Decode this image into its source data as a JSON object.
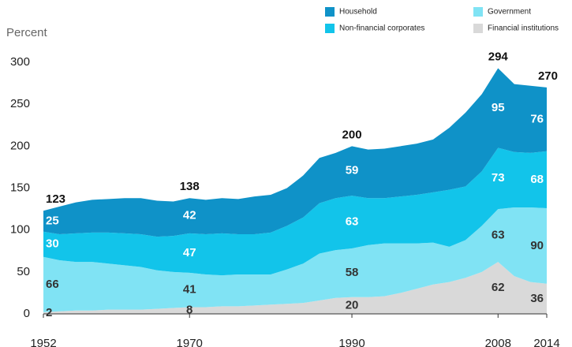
{
  "chart_data": {
    "type": "stacked_area",
    "y_label": "Percent",
    "x": [
      1952,
      1954,
      1956,
      1958,
      1960,
      1962,
      1964,
      1966,
      1968,
      1970,
      1972,
      1974,
      1976,
      1978,
      1980,
      1982,
      1984,
      1986,
      1988,
      1990,
      1992,
      1994,
      1996,
      1998,
      2000,
      2002,
      2004,
      2006,
      2008,
      2010,
      2012,
      2014
    ],
    "series": [
      {
        "name": "Financial institutions",
        "color": "#d9d9d9",
        "label_color": "#333333",
        "values": [
          2,
          3,
          4,
          4,
          5,
          5,
          5,
          6,
          7,
          8,
          8,
          9,
          9,
          10,
          11,
          12,
          13,
          16,
          19,
          20,
          20,
          21,
          25,
          30,
          35,
          38,
          43,
          50,
          62,
          45,
          38,
          36
        ]
      },
      {
        "name": "Government",
        "color": "#80e3f4",
        "label_color": "#333333",
        "values": [
          66,
          61,
          58,
          58,
          55,
          53,
          51,
          46,
          43,
          41,
          39,
          37,
          38,
          37,
          36,
          41,
          47,
          56,
          57,
          58,
          62,
          63,
          59,
          54,
          50,
          42,
          45,
          55,
          63,
          82,
          89,
          90
        ]
      },
      {
        "name": "Non-financial corporates",
        "color": "#12c4ea",
        "label_color": "#ffffff",
        "values": [
          30,
          31,
          34,
          35,
          37,
          38,
          39,
          40,
          43,
          47,
          48,
          50,
          48,
          48,
          50,
          52,
          55,
          60,
          62,
          63,
          56,
          54,
          56,
          58,
          60,
          68,
          64,
          65,
          73,
          66,
          65,
          68
        ]
      },
      {
        "name": "Household",
        "color": "#0f92c8",
        "label_color": "#ffffff",
        "values": [
          25,
          33,
          37,
          39,
          40,
          42,
          43,
          43,
          41,
          42,
          41,
          42,
          42,
          45,
          45,
          45,
          50,
          54,
          54,
          59,
          58,
          59,
          60,
          61,
          63,
          74,
          88,
          92,
          95,
          81,
          80,
          76
        ]
      }
    ],
    "legend_order": [
      3,
      1,
      2,
      0
    ],
    "totals": [
      {
        "x": 1952,
        "label": "123"
      },
      {
        "x": 1970,
        "label": "138"
      },
      {
        "x": 1990,
        "label": "200"
      },
      {
        "x": 2008,
        "label": "294"
      },
      {
        "x": 2014,
        "label": "270"
      }
    ],
    "xlim": [
      1952,
      2014
    ],
    "xticks": [
      1952,
      1970,
      1990,
      2008,
      2014
    ],
    "ylim": [
      0,
      300
    ],
    "yticks": [
      0,
      50,
      100,
      150,
      200,
      250,
      300
    ],
    "grid": false
  }
}
